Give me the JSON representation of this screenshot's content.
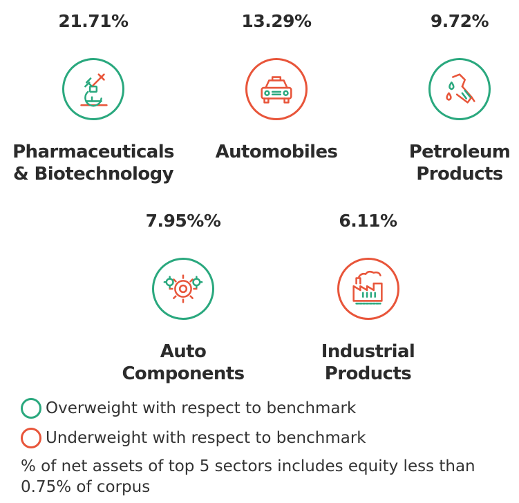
{
  "chart_data": {
    "type": "table",
    "title": "",
    "items": [
      {
        "value_label": "21.71%",
        "value": 21.71,
        "name_lines": [
          "Pharmaceuticals",
          "& Biotechnology"
        ],
        "weight": "overweight",
        "icon": "microscope-icon"
      },
      {
        "value_label": "13.29%",
        "value": 13.29,
        "name_lines": [
          "Automobiles"
        ],
        "weight": "underweight",
        "icon": "car-icon"
      },
      {
        "value_label": "9.72%",
        "value": 9.72,
        "name_lines": [
          "Petroleum",
          "Products"
        ],
        "weight": "overweight",
        "icon": "fuel-nozzle-icon"
      },
      {
        "value_label": "7.95%%",
        "value": 7.95,
        "name_lines": [
          "Auto",
          "Components"
        ],
        "weight": "overweight",
        "icon": "gears-icon"
      },
      {
        "value_label": "6.11%",
        "value": 6.11,
        "name_lines": [
          "Industrial",
          "Products"
        ],
        "weight": "underweight",
        "icon": "factory-icon"
      }
    ]
  },
  "legend": {
    "overweight": {
      "label": "Overweight with respect to benchmark",
      "color": "#2aa87e"
    },
    "underweight": {
      "label": "Underweight with respect to benchmark",
      "color": "#e8553a"
    }
  },
  "note": "% of net assets of top 5 sectors includes equity less than 0.75% of corpus"
}
